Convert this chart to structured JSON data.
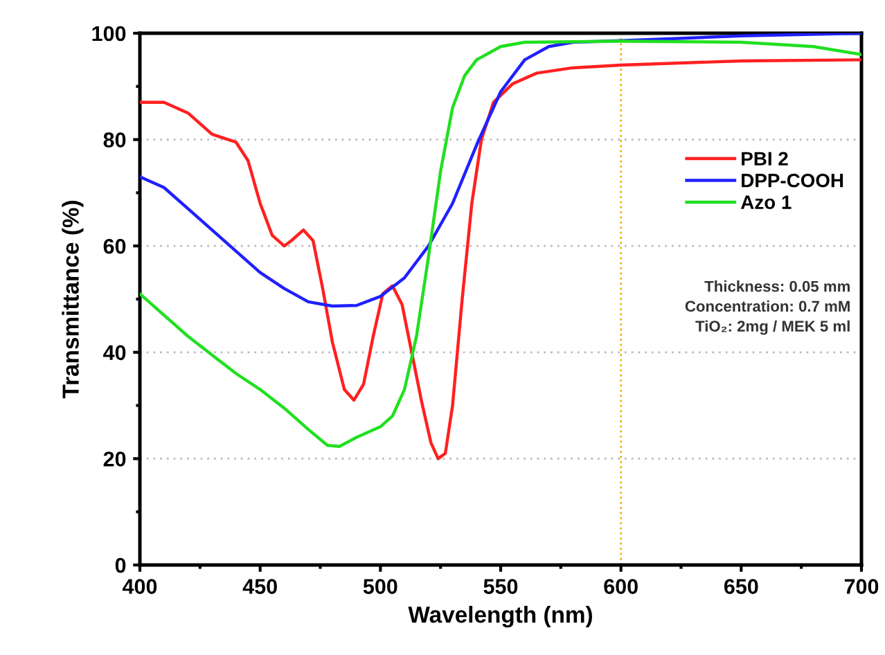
{
  "chart_data": {
    "type": "line",
    "xlabel": "Wavelength (nm)",
    "ylabel": "Transmittance (%)",
    "xlim": [
      400,
      700
    ],
    "xticks": [
      400,
      450,
      500,
      550,
      600,
      650,
      700
    ],
    "ylim": [
      0,
      100
    ],
    "yticks": [
      0,
      20,
      40,
      60,
      80,
      100
    ],
    "grid": "y",
    "legend": "right",
    "line_style": "solid",
    "marker": "none",
    "ref_lines": [
      {
        "axis": "x",
        "value": 600,
        "color": "#f0b400",
        "line_style": "dotted"
      }
    ],
    "annotations": [
      "Thickness: 0.05 mm\nConcentration: 0.7 mM\nTiO₂: 2mg / MEK 5 ml"
    ],
    "series": [
      {
        "name": "PBI 2",
        "color": "#ff2020",
        "x": [
          400,
          410,
          420,
          430,
          440,
          445,
          450,
          455,
          460,
          463,
          468,
          472,
          476,
          480,
          485,
          489,
          493,
          497,
          501,
          505,
          509,
          513,
          517,
          521,
          524,
          527,
          530,
          534,
          538,
          542,
          547,
          555,
          565,
          580,
          600,
          650,
          700
        ],
        "values": [
          87,
          87,
          85,
          81,
          79.5,
          76,
          68,
          62,
          60,
          61,
          63,
          61,
          52,
          42,
          33,
          31,
          34,
          43,
          51,
          52.5,
          49,
          40,
          31,
          23,
          20,
          21,
          30,
          50,
          68,
          80,
          87,
          90.5,
          92.5,
          93.5,
          94,
          94.8,
          95
        ]
      },
      {
        "name": "DPP-COOH",
        "color": "#2020ff",
        "x": [
          400,
          410,
          420,
          430,
          440,
          450,
          460,
          470,
          480,
          490,
          500,
          510,
          520,
          530,
          540,
          550,
          560,
          570,
          580,
          600,
          650,
          700
        ],
        "values": [
          73,
          71,
          67,
          63,
          59,
          55,
          52,
          49.5,
          48.7,
          48.8,
          50.5,
          54,
          60,
          68,
          79,
          89,
          95,
          97.5,
          98.3,
          98.6,
          99.5,
          100
        ]
      },
      {
        "name": "Azo 1",
        "color": "#20e020",
        "x": [
          400,
          410,
          420,
          430,
          440,
          450,
          460,
          470,
          478,
          483,
          490,
          500,
          505,
          510,
          515,
          520,
          525,
          530,
          535,
          540,
          550,
          560,
          600,
          650,
          680,
          700
        ],
        "values": [
          51,
          47,
          43,
          39.5,
          36,
          33,
          29.5,
          25.5,
          22.5,
          22.3,
          24,
          26,
          28,
          33,
          43,
          58,
          74,
          86,
          92,
          95,
          97.5,
          98.3,
          98.5,
          98.3,
          97.5,
          96
        ]
      }
    ]
  }
}
